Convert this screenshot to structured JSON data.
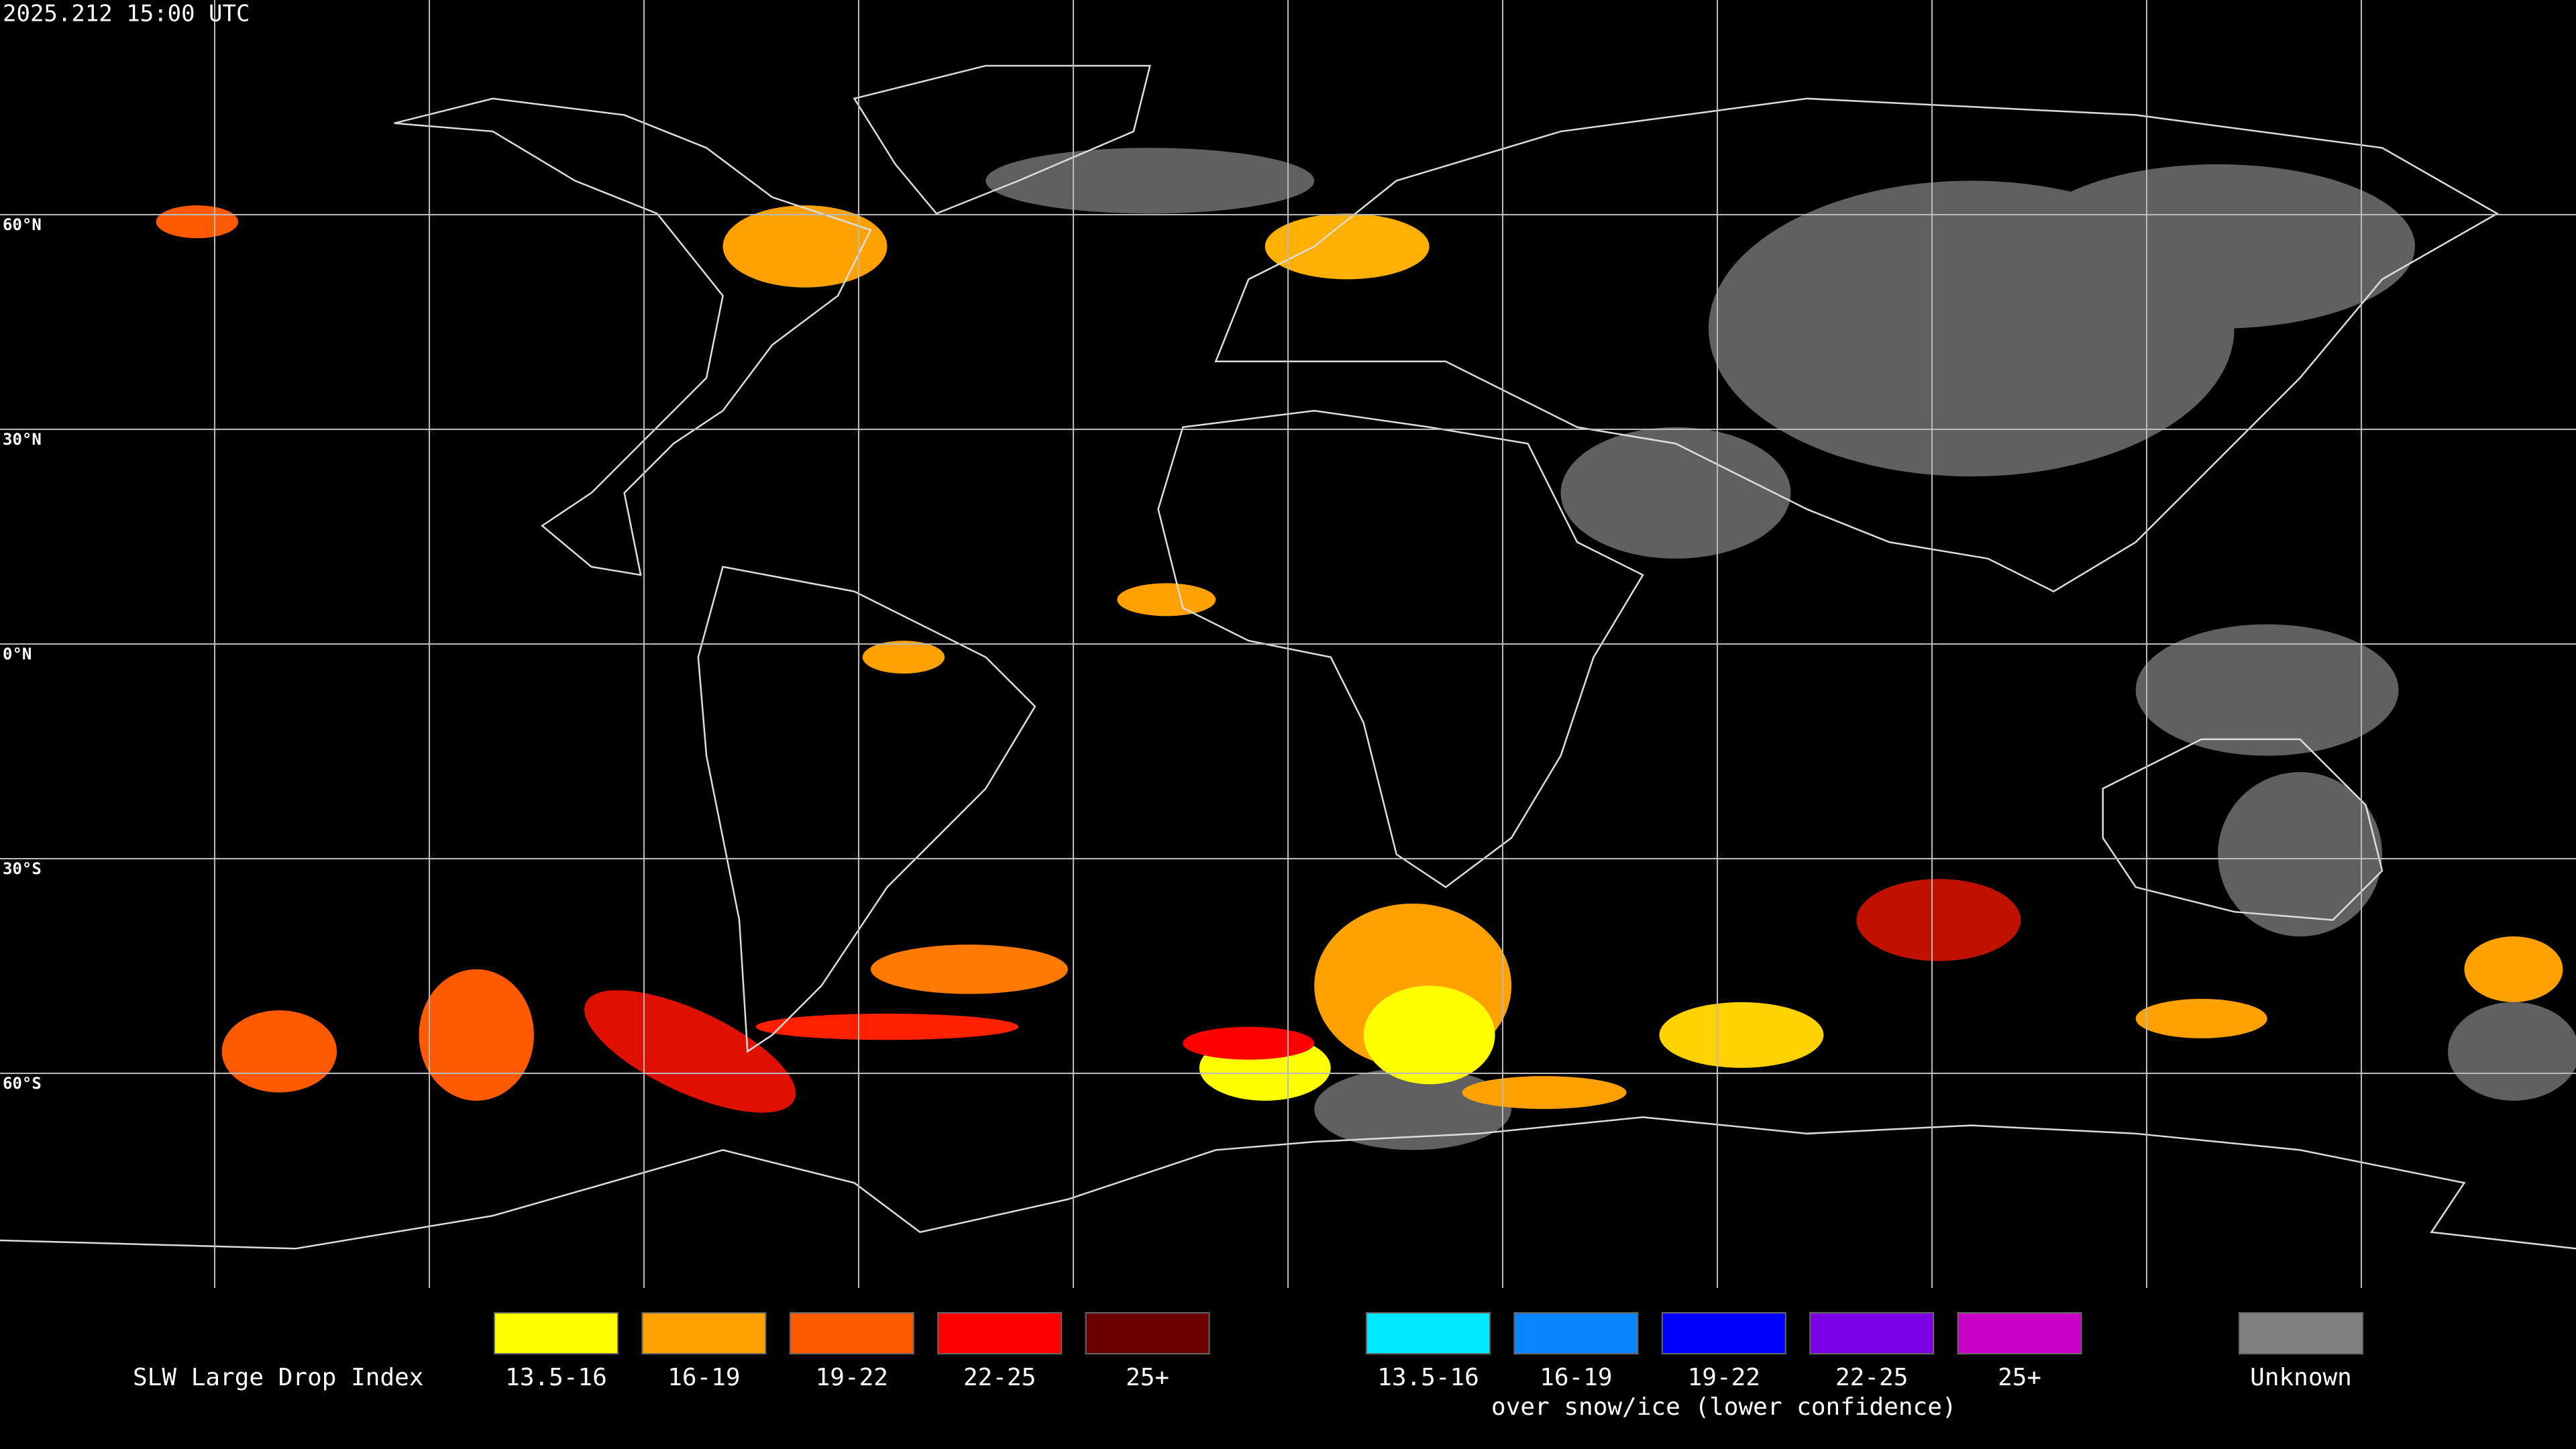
{
  "timestamp": "2025.212 15:00 UTC",
  "map": {
    "latitude_labels": [
      "60°N",
      "30°N",
      "0°N",
      "30°S",
      "60°S"
    ]
  },
  "legend": {
    "title": "SLW Large Drop Index",
    "groups": [
      {
        "items": [
          {
            "label": "13.5-16",
            "color": "#ffff00"
          },
          {
            "label": "16-19",
            "color": "#ffa200"
          },
          {
            "label": "19-22",
            "color": "#ff5a00"
          },
          {
            "label": "22-25",
            "color": "#ff0000"
          },
          {
            "label": "25+",
            "color": "#6b0000"
          }
        ]
      },
      {
        "items": [
          {
            "label": "13.5-16",
            "color": "#00eaff"
          },
          {
            "label": "16-19",
            "color": "#0a84ff"
          },
          {
            "label": "19-22",
            "color": "#0000ff"
          },
          {
            "label": "22-25",
            "color": "#7a00e6"
          },
          {
            "label": "25+",
            "color": "#c800c8"
          }
        ],
        "caption": "over snow/ice (lower confidence)"
      },
      {
        "items": [
          {
            "label": "Unknown",
            "color": "#808080"
          }
        ]
      }
    ]
  }
}
